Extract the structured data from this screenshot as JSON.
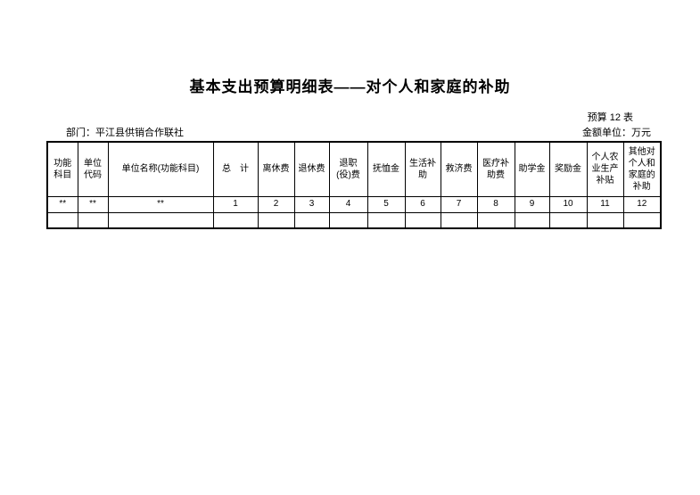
{
  "page": {
    "title": "基本支出预算明细表——对个人和家庭的补助",
    "table_no": "预算 12 表",
    "department_label": "部门：平江县供销合作联社",
    "unit_label": "金额单位：万元",
    "text_color": "#000000",
    "background_color": "#ffffff"
  },
  "table": {
    "columns": [
      {
        "label": "功能\n科目"
      },
      {
        "label": "单位\n代码"
      },
      {
        "label": "单位名称(功能科目)"
      },
      {
        "label": "总　计"
      },
      {
        "label": "离休费"
      },
      {
        "label": "退休费"
      },
      {
        "label": "退职\n(役)费"
      },
      {
        "label": "抚恤金"
      },
      {
        "label": "生活补\n助"
      },
      {
        "label": "救济费"
      },
      {
        "label": "医疗补\n助费"
      },
      {
        "label": "助学金"
      },
      {
        "label": "奖励金"
      },
      {
        "label": "个人农\n业生产\n补贴"
      },
      {
        "label": "其他对\n个人和\n家庭的\n补助"
      }
    ],
    "code_row": [
      "**",
      "**",
      "**",
      "1",
      "2",
      "3",
      "4",
      "5",
      "6",
      "7",
      "8",
      "9",
      "10",
      "11",
      "12"
    ],
    "data_row": [
      "",
      "",
      "",
      "",
      "",
      "",
      "",
      "",
      "",
      "",
      "",
      "",
      "",
      "",
      ""
    ]
  }
}
